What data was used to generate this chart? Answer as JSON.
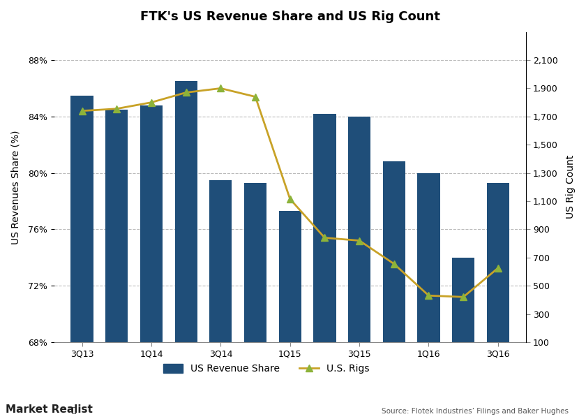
{
  "title": "FTK's US Revenue Share and US Rig Count",
  "categories": [
    "3Q13",
    "",
    "1Q14",
    "",
    "3Q14",
    "",
    "1Q15",
    "",
    "3Q15",
    "",
    "1Q16",
    "",
    "3Q16"
  ],
  "x_tick_labels": [
    "3Q13",
    "1Q14",
    "3Q14",
    "1Q15",
    "3Q15",
    "1Q16",
    "3Q16"
  ],
  "x_tick_positions": [
    0,
    2,
    4,
    6,
    8,
    10,
    12
  ],
  "bar_values": [
    85.5,
    84.5,
    84.8,
    86.5,
    79.5,
    79.3,
    77.3,
    84.2,
    84.0,
    80.8,
    80.0,
    74.0,
    79.3
  ],
  "rig_values": [
    1740,
    1755,
    1800,
    1870,
    1900,
    1840,
    1115,
    840,
    820,
    655,
    430,
    420,
    625
  ],
  "bar_color": "#1F4E79",
  "line_color": "#C8A227",
  "marker_color": "#8DB33A",
  "ylabel_left": "US Revenues Share (%)",
  "ylabel_right": "US Rig Count",
  "ylim_left": [
    68,
    90
  ],
  "ylim_right": [
    100,
    2300
  ],
  "yticks_left": [
    68,
    72,
    76,
    80,
    84,
    88
  ],
  "yticks_right": [
    100,
    300,
    500,
    700,
    900,
    1100,
    1300,
    1500,
    1700,
    1900,
    2100
  ],
  "legend_labels": [
    "US Revenue Share",
    "U.S. Rigs"
  ],
  "source_text": "Source: Flotek Industries’ Filings and Baker Hughes",
  "watermark": "Market Realist",
  "background_color": "#FFFFFF",
  "grid_color": "#BBBBBB"
}
